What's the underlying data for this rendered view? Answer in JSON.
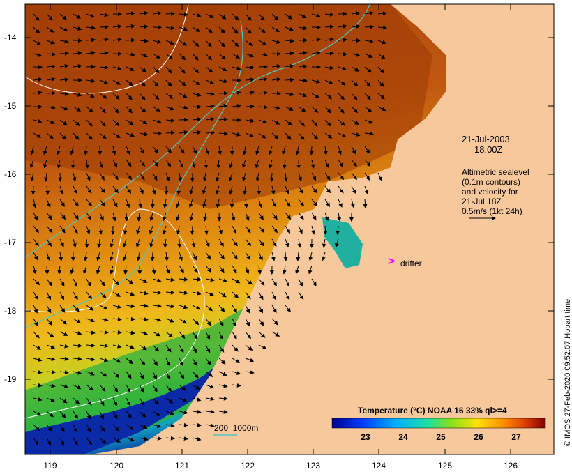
{
  "map": {
    "date": "21-Jul-2003",
    "time": "18:00Z",
    "legend_lines": [
      "Altimetric sealevel",
      "(0.1m contours)",
      "and velocity for",
      "21-Jul 18Z",
      "0.5m/s (1kt 24h)"
    ],
    "drifter_symbol": ">",
    "drifter_label": "drifter",
    "depth_legend": "200  1000m",
    "credit": "© IMOS 27-Feb-2020 09:52:07 Hobart time",
    "colorbar_title": "Temperature (°C) NOAA 16 33% ql>=4",
    "colorbar_ticks": [
      "23",
      "24",
      "25",
      "26",
      "27"
    ],
    "lat_ticks": [
      "-14",
      "-15",
      "-16",
      "-17",
      "-18",
      "-19"
    ],
    "lon_ticks": [
      "119",
      "120",
      "121",
      "122",
      "123",
      "124",
      "125",
      "126"
    ],
    "colors": {
      "land": "#f7c89c",
      "warm": "#b54a10",
      "cool": "#0a1e9c",
      "contour_depth": "#50c8c0",
      "contour_sealevel": "#ffffff",
      "drifter": "#ff00ff"
    }
  }
}
